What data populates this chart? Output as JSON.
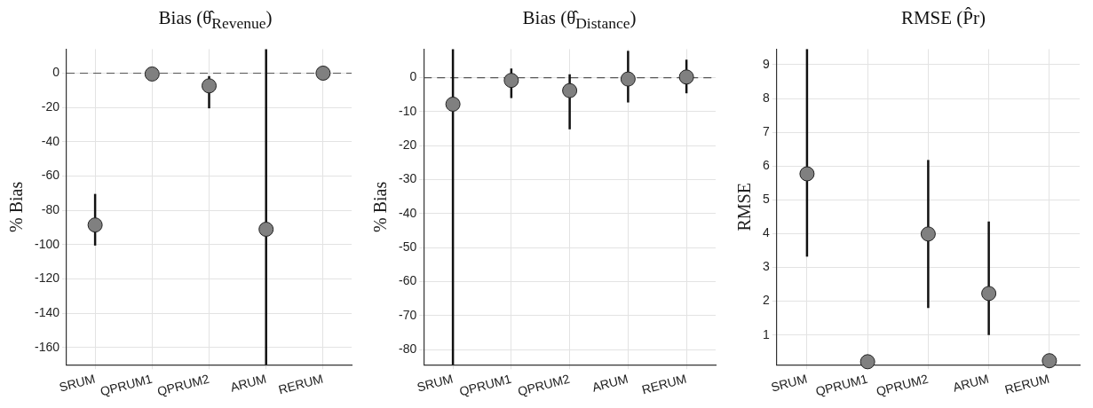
{
  "chart_data": [
    {
      "type": "scatter",
      "title": "Bias (θ̂$_{Revenue}$)",
      "ylabel": "% Bias",
      "categories": [
        "SRUM",
        "QPRUM1",
        "QPRUM2",
        "ARUM",
        "RERUM"
      ],
      "color": "#808080",
      "values": [
        -88.5,
        -0.5,
        -7.4,
        -91,
        0
      ],
      "errors": [
        [
          -100.5,
          -70.4
        ],
        null,
        [
          -20.5,
          -1.7
        ],
        [
          -170,
          14
        ],
        null
      ],
      "ylim": [
        -170,
        14
      ],
      "yticks": [
        -160,
        -140,
        -120,
        -100,
        -80,
        -60,
        -40,
        -20,
        0
      ],
      "ref_lines": [
        {
          "axis": "y",
          "value": 0,
          "color": "#555555",
          "line_style": "dashed"
        }
      ],
      "grid": true,
      "marker": "circle"
    },
    {
      "type": "scatter",
      "title": "Bias (θ̂$_{Distance}$)",
      "ylabel": "% Bias",
      "categories": [
        "SRUM",
        "QPRUM1",
        "QPRUM2",
        "ARUM",
        "RERUM"
      ],
      "color": "#808080",
      "values": [
        -7.8,
        -0.8,
        -3.8,
        -0.4,
        0.2
      ],
      "errors": [
        [
          -84.5,
          8.4
        ],
        [
          -6,
          2.7
        ],
        [
          -15.2,
          1
        ],
        [
          -7.3,
          7.9
        ],
        [
          -4.6,
          5.3
        ]
      ],
      "ylim": [
        -84.5,
        8.4
      ],
      "yticks": [
        -80,
        -70,
        -60,
        -50,
        -40,
        -30,
        -20,
        -10,
        0
      ],
      "ref_lines": [
        {
          "axis": "y",
          "value": 0,
          "color": "#555555",
          "line_style": "dashed"
        }
      ],
      "grid": true,
      "marker": "circle"
    },
    {
      "type": "scatter",
      "title": "RMSE (P̂r)",
      "ylabel": "RMSE",
      "categories": [
        "SRUM",
        "QPRUM1",
        "QPRUM2",
        "ARUM",
        "RERUM"
      ],
      "color": "#808080",
      "values": [
        5.77,
        0.21,
        3.99,
        2.23,
        0.24
      ],
      "errors": [
        [
          3.32,
          9.46
        ],
        null,
        [
          1.8,
          6.18
        ],
        [
          1.0,
          4.36
        ],
        null
      ],
      "ylim": [
        0.12,
        9.46
      ],
      "yticks": [
        1,
        2,
        3,
        4,
        5,
        6,
        7,
        8,
        9
      ],
      "grid": true,
      "marker": "circle"
    }
  ]
}
